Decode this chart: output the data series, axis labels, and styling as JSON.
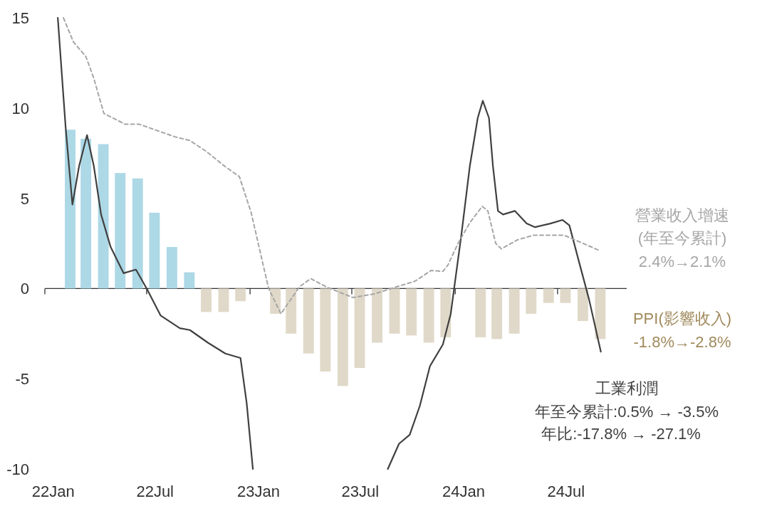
{
  "chart_data": {
    "type": "bar",
    "xlim": [
      "2022-01-01",
      "2024-11-01"
    ],
    "xticks": [
      {
        "value": "2022-01-16",
        "label": "22Jan"
      },
      {
        "value": "2022-07-16",
        "label": "22Jul"
      },
      {
        "value": "2023-01-16",
        "label": "23Jan"
      },
      {
        "value": "2023-07-16",
        "label": "23Jul"
      },
      {
        "value": "2024-01-16",
        "label": "24Jan"
      },
      {
        "value": "2024-07-16",
        "label": "24Jul"
      }
    ],
    "ylim": [
      -10,
      15
    ],
    "yticks": [
      -10,
      -5,
      0,
      5,
      10,
      15
    ],
    "series": [
      {
        "x": [
          "2022-02-15",
          "2022-03-15",
          "2022-04-15",
          "2022-05-15",
          "2022-06-15",
          "2022-07-15",
          "2022-08-15",
          "2022-09-15",
          "2022-10-15",
          "2022-11-15",
          "2022-12-15",
          "2023-02-15",
          "2023-03-15",
          "2023-04-15",
          "2023-05-15",
          "2023-06-15",
          "2023-07-15",
          "2023-08-15",
          "2023-09-15",
          "2023-10-15",
          "2023-11-15",
          "2023-12-15",
          "2024-02-15",
          "2024-03-15",
          "2024-04-15",
          "2024-05-15",
          "2024-06-15",
          "2024-07-15",
          "2024-08-15",
          "2024-09-15"
        ],
        "values": [
          8.8,
          8.3,
          8.0,
          6.4,
          6.1,
          4.2,
          2.3,
          0.9,
          -1.3,
          -1.3,
          -0.7,
          -1.4,
          -2.5,
          -3.6,
          -4.6,
          -5.4,
          -4.4,
          -3.0,
          -2.5,
          -2.6,
          -3.0,
          -2.7,
          -2.7,
          -2.8,
          -2.5,
          -1.4,
          -0.8,
          -0.8,
          -1.8,
          -2.8
        ],
        "colors": [
          "#add8e6",
          "#add8e6",
          "#add8e6",
          "#add8e6",
          "#add8e6",
          "#add8e6",
          "#add8e6",
          "#add8e6",
          "#e0d9c9",
          "#e0d9c9",
          "#e0d9c9",
          "#e0d9c9",
          "#e0d9c9",
          "#e0d9c9",
          "#e0d9c9",
          "#e0d9c9",
          "#e0d9c9",
          "#e0d9c9",
          "#e0d9c9",
          "#e0d9c9",
          "#e0d9c9",
          "#e0d9c9",
          "#e0d9c9",
          "#e0d9c9",
          "#e0d9c9",
          "#e0d9c9",
          "#e0d9c9",
          "#e0d9c9",
          "#e0d9c9",
          "#e0d9c9"
        ]
      },
      {
        "type": "line",
        "color": "#404040",
        "line_style": "solid",
        "x": [
          "2022-01-24",
          "2022-02-07",
          "2022-02-19",
          "2022-03-03",
          "2022-03-17",
          "2022-03-29",
          "2022-04-11",
          "2022-04-28",
          "2022-05-21",
          "2022-06-12",
          "2022-07-02",
          "2022-07-26",
          "2022-08-29",
          "2022-09-16",
          "2022-10-18",
          "2022-11-18",
          "2022-12-15",
          "2022-12-26",
          "2023-01-06",
          "2023-05-01",
          "2023-09-03",
          "2023-09-23",
          "2023-10-12",
          "2023-10-30",
          "2023-11-17",
          "2023-12-10",
          "2023-12-24",
          "2023-12-30",
          "2024-01-12",
          "2024-01-27",
          "2024-02-10",
          "2024-02-19",
          "2024-03-01",
          "2024-03-08",
          "2024-03-17",
          "2024-03-26",
          "2024-04-16",
          "2024-05-07",
          "2024-05-22",
          "2024-06-18",
          "2024-07-10",
          "2024-07-22",
          "2024-08-08",
          "2024-08-26",
          "2024-09-16"
        ],
        "values": [
          15,
          8.9,
          4.65,
          6.8,
          8.5,
          6.8,
          4.1,
          2.3,
          0.85,
          1.05,
          -0.05,
          -1.5,
          -2.2,
          -2.3,
          -3.0,
          -3.6,
          -3.85,
          -6.35,
          -10,
          null,
          -10,
          -8.6,
          -8.1,
          -6.5,
          -4.3,
          -3.1,
          -1.4,
          0,
          3.0,
          6.8,
          9.45,
          10.4,
          9.45,
          6.8,
          4.3,
          4.1,
          4.3,
          3.6,
          3.4,
          3.6,
          3.8,
          3.5,
          1.5,
          -0.6,
          -3.5
        ]
      },
      {
        "type": "line",
        "color": "#a6a6a6",
        "line_style": "dashed",
        "x": [
          "2022-02-03",
          "2022-02-21",
          "2022-03-15",
          "2022-03-29",
          "2022-04-16",
          "2022-05-24",
          "2022-06-18",
          "2022-08-21",
          "2022-09-16",
          "2022-10-15",
          "2022-11-18",
          "2022-12-13",
          "2023-01-03",
          "2023-02-03",
          "2023-02-25",
          "2023-03-30",
          "2023-04-19",
          "2023-05-18",
          "2023-07-03",
          "2023-08-10",
          "2023-09-14",
          "2023-10-21",
          "2023-11-19",
          "2023-12-10",
          "2023-12-19",
          "2024-01-06",
          "2024-01-27",
          "2024-02-18",
          "2024-02-28",
          "2024-03-13",
          "2024-03-23",
          "2024-04-21",
          "2024-05-19",
          "2024-07-13",
          "2024-08-08",
          "2024-09-14"
        ],
        "values": [
          15,
          13.65,
          12.85,
          11.65,
          9.7,
          9.1,
          9.1,
          8.4,
          8.2,
          7.6,
          6.75,
          6.2,
          4.2,
          0,
          -1.4,
          0.1,
          0.55,
          0.07,
          -0.5,
          -0.3,
          0.05,
          0.4,
          1.0,
          0.95,
          1.3,
          2.5,
          3.65,
          4.55,
          4.3,
          2.5,
          2.2,
          2.7,
          2.95,
          2.95,
          2.6,
          2.1
        ]
      }
    ],
    "annotations": [
      "營業收入增速",
      "(年至今累計)",
      "2.4%→2.1%",
      "PPI(影響收入)",
      "-1.8%→-2.8%",
      "工業利潤",
      "年至今累計:0.5% → -3.5%",
      "年比:-17.8% → -27.1%"
    ]
  }
}
